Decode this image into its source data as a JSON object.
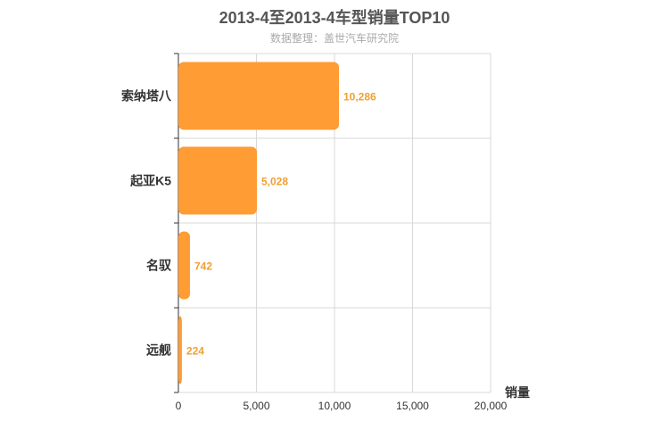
{
  "chart_data": {
    "type": "bar",
    "orientation": "horizontal",
    "title": "2013-4至2013-4车型销量TOP10",
    "subtitle": "数据整理：盖世汽车研究院",
    "categories": [
      "索纳塔八",
      "起亚K5",
      "名驭",
      "远舰"
    ],
    "values": [
      10286,
      5028,
      742,
      224
    ],
    "value_labels": [
      "10,286",
      "5,028",
      "742",
      "224"
    ],
    "xlabel": "销量",
    "xlim": [
      0,
      20000
    ],
    "xticks": [
      0,
      5000,
      10000,
      15000,
      20000
    ],
    "xtick_labels": [
      "0",
      "5,000",
      "10,000",
      "15,000",
      "20,000"
    ],
    "grid": true,
    "bar_color": "#ff9c34",
    "label_color": "#f0a030"
  }
}
